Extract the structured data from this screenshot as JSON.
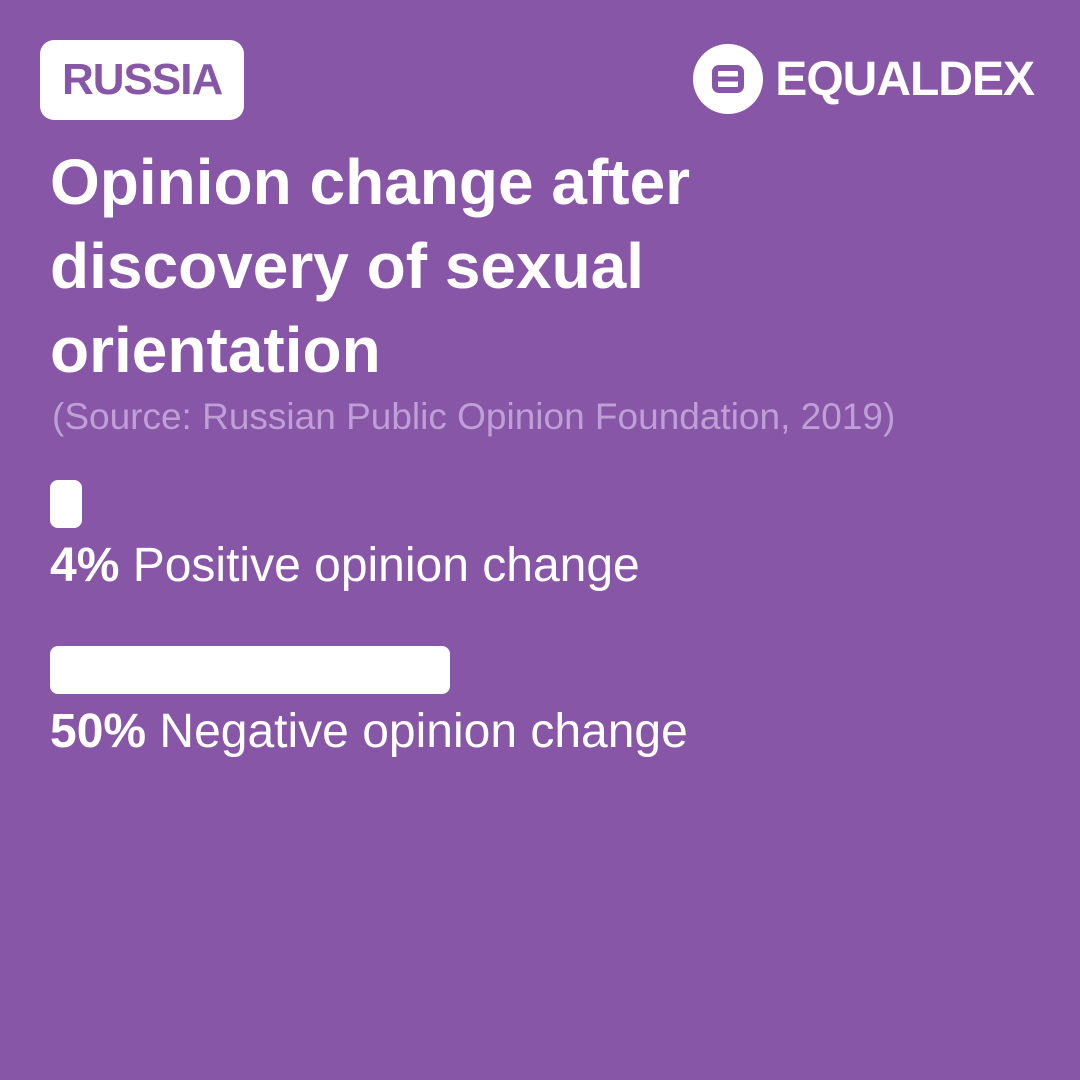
{
  "badge": {
    "country": "RUSSIA"
  },
  "brand": {
    "name": "EQUALDEX",
    "logo_icon": "equaldex-logo-icon"
  },
  "colors": {
    "background": "#8856a7",
    "foreground": "#ffffff",
    "source_text": "#bf9fd6"
  },
  "chart_data": {
    "type": "bar",
    "orientation": "horizontal",
    "title": "Opinion change after discovery of sexual orientation",
    "subtitle": "(Source: Russian Public Opinion Foundation, 2019)",
    "unit": "%",
    "xlim": [
      0,
      100
    ],
    "grid": false,
    "bars": [
      {
        "value": 4,
        "value_label": "4%",
        "category": "Positive opinion change"
      },
      {
        "value": 50,
        "value_label": "50%",
        "category": "Negative opinion change"
      }
    ]
  }
}
